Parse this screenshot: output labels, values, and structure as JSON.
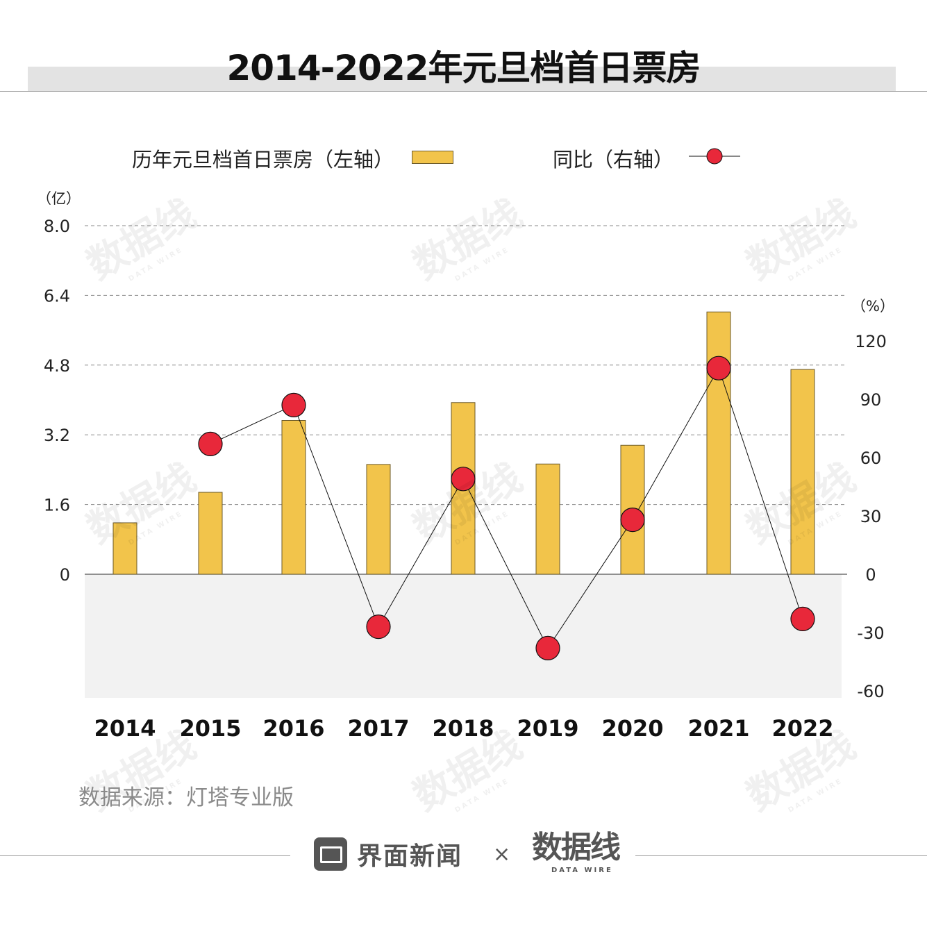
{
  "title": "2014-2022年元旦档首日票房",
  "legend": {
    "bar_label": "历年元旦档首日票房（左轴）",
    "line_label": "同比（右轴）"
  },
  "axes": {
    "left_unit": "（亿）",
    "right_unit": "（%）"
  },
  "source": "数据来源：灯塔专业版",
  "footer": {
    "brand": "界面新闻",
    "times": "×",
    "partner": "数据线",
    "partner_sub": "DATA WIRE"
  },
  "watermark": {
    "main": "数据线",
    "sub": "DATA WIRE"
  },
  "colors": {
    "bar": "#f2c44b",
    "bar_border": "#6b5a2a",
    "dot": "#e8283a",
    "line": "#111111",
    "negative_bg": "#f2f2f2"
  },
  "chart_data": {
    "type": "bar",
    "title": "2014-2022年元旦档首日票房",
    "categories": [
      "2014",
      "2015",
      "2016",
      "2017",
      "2018",
      "2019",
      "2020",
      "2021",
      "2022"
    ],
    "series": [
      {
        "name": "历年元旦档首日票房（左轴）",
        "type": "bar",
        "axis": "left",
        "values": [
          1.18,
          1.88,
          3.53,
          2.52,
          3.94,
          2.53,
          2.96,
          6.02,
          4.7
        ]
      },
      {
        "name": "同比（右轴）",
        "type": "line",
        "axis": "right",
        "values": [
          null,
          67,
          87,
          -27,
          49,
          -38,
          28,
          106,
          -23
        ]
      }
    ],
    "left_axis": {
      "unit": "（亿）",
      "ticks": [
        "0",
        "1.6",
        "3.2",
        "4.8",
        "6.4",
        "8.0"
      ],
      "range": [
        -2.86,
        8.0
      ]
    },
    "right_axis": {
      "unit": "（%）",
      "ticks": [
        "-60",
        "-30",
        "0",
        "30",
        "60",
        "90",
        "120"
      ],
      "range": [
        -60,
        120
      ]
    },
    "grid": true,
    "legend_position": "top"
  }
}
